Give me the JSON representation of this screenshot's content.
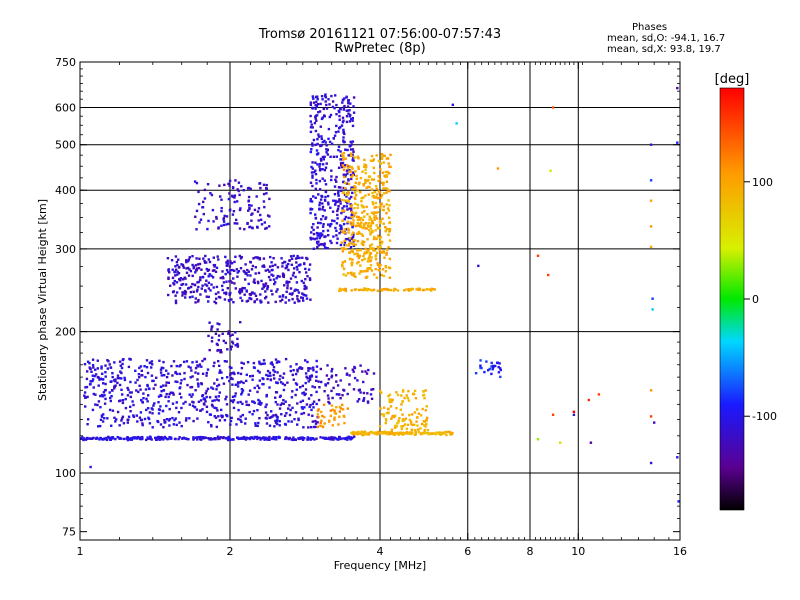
{
  "header": {
    "title_line1": "Tromsø 20161121 07:56:00-07:57:43",
    "title_line2": "RwPretec (8p)",
    "phases_title": "Phases",
    "phases_line1": "mean, sd,O: -94.1, 16.7",
    "phases_line2": "mean, sd,X:  93.8, 19.7"
  },
  "chart_data": {
    "type": "scatter",
    "title": "Tromsø 20161121 07:56:00-07:57:43",
    "subtitle": "RwPretec (8p)",
    "xlabel": "Frequency [MHz]",
    "ylabel": "Stationary phase Virtual Height [km]",
    "xscale": "log",
    "yscale": "log",
    "xlim": [
      1,
      16
    ],
    "ylim": [
      72,
      750
    ],
    "x_ticks": [
      1,
      2,
      4,
      6,
      8,
      10,
      16
    ],
    "y_ticks": [
      75,
      100,
      200,
      300,
      400,
      500,
      600,
      750
    ],
    "x_gridlines": [
      2,
      4,
      6,
      8,
      10
    ],
    "y_gridlines": [
      100,
      200,
      300,
      400,
      500,
      600
    ],
    "grid": true,
    "colorbar": {
      "label": "[deg]",
      "range": [
        -180,
        180
      ],
      "ticks": [
        -100,
        0,
        100
      ],
      "colormap": "rainbow (black-purple-blue-cyan-green-yellow-red)"
    },
    "series": [
      {
        "name": "O",
        "mean_phase": -94.1,
        "sd_phase": 16.7,
        "color": "#1a2ee8"
      },
      {
        "name": "X",
        "mean_phase": 93.8,
        "sd_phase": 19.7,
        "color": "#f2e41a"
      }
    ],
    "clusters": [
      {
        "series": "O",
        "shape": "trace",
        "x": [
          1.0,
          3.6
        ],
        "y": [
          118,
          119
        ],
        "count": 320,
        "phase": -105
      },
      {
        "series": "O",
        "shape": "box",
        "x": [
          1.02,
          3.0
        ],
        "y": [
          125,
          175
        ],
        "count": 700,
        "phase": -110
      },
      {
        "series": "O",
        "shape": "box",
        "x": [
          1.5,
          2.9
        ],
        "y": [
          230,
          290
        ],
        "count": 420,
        "phase": -115
      },
      {
        "series": "O",
        "shape": "box",
        "x": [
          1.7,
          2.4
        ],
        "y": [
          330,
          420
        ],
        "count": 120,
        "phase": -115
      },
      {
        "series": "O",
        "shape": "box",
        "x": [
          2.9,
          3.55
        ],
        "y": [
          300,
          640
        ],
        "count": 420,
        "phase": -110
      },
      {
        "series": "O",
        "shape": "box",
        "x": [
          3.0,
          3.9
        ],
        "y": [
          140,
          170
        ],
        "count": 70,
        "phase": -120
      },
      {
        "series": "O",
        "shape": "box",
        "x": [
          1.8,
          2.1
        ],
        "y": [
          180,
          210
        ],
        "count": 40,
        "phase": -115
      },
      {
        "series": "X",
        "shape": "box",
        "x": [
          3.35,
          4.2
        ],
        "y": [
          260,
          480
        ],
        "count": 450,
        "phase": 95
      },
      {
        "series": "X",
        "shape": "trace",
        "x": [
          3.5,
          5.6
        ],
        "y": [
          121,
          122
        ],
        "count": 150,
        "phase": 90
      },
      {
        "series": "X",
        "shape": "box",
        "x": [
          4.0,
          5.0
        ],
        "y": [
          123,
          150
        ],
        "count": 110,
        "phase": 90
      },
      {
        "series": "X",
        "shape": "trace",
        "x": [
          3.3,
          5.2
        ],
        "y": [
          245,
          246
        ],
        "count": 60,
        "phase": 95
      },
      {
        "series": "X",
        "shape": "box",
        "x": [
          3.0,
          3.45
        ],
        "y": [
          125,
          140
        ],
        "count": 40,
        "phase": 110
      },
      {
        "series": "O",
        "shape": "box",
        "x": [
          6.2,
          7.0
        ],
        "y": [
          160,
          175
        ],
        "count": 25,
        "phase": -90
      }
    ],
    "isolated_points": [
      {
        "x": 8.9,
        "y": 600,
        "phase": 140
      },
      {
        "x": 6.9,
        "y": 445,
        "phase": 110
      },
      {
        "x": 8.8,
        "y": 440,
        "phase": 40
      },
      {
        "x": 8.3,
        "y": 290,
        "phase": 150
      },
      {
        "x": 6.3,
        "y": 276,
        "phase": -110
      },
      {
        "x": 8.7,
        "y": 264,
        "phase": 150
      },
      {
        "x": 5.6,
        "y": 608,
        "phase": -100
      },
      {
        "x": 5.7,
        "y": 555,
        "phase": -40
      },
      {
        "x": 14.0,
        "y": 500,
        "phase": -110
      },
      {
        "x": 14.0,
        "y": 420,
        "phase": -80
      },
      {
        "x": 14.0,
        "y": 380,
        "phase": 100
      },
      {
        "x": 14.0,
        "y": 335,
        "phase": 110
      },
      {
        "x": 14.0,
        "y": 303,
        "phase": 100
      },
      {
        "x": 14.1,
        "y": 235,
        "phase": -80
      },
      {
        "x": 14.1,
        "y": 223,
        "phase": -40
      },
      {
        "x": 15.8,
        "y": 660,
        "phase": -140
      },
      {
        "x": 15.8,
        "y": 505,
        "phase": -90
      },
      {
        "x": 11.0,
        "y": 147,
        "phase": 150
      },
      {
        "x": 10.5,
        "y": 143,
        "phase": 160
      },
      {
        "x": 9.8,
        "y": 135,
        "phase": 180
      },
      {
        "x": 9.8,
        "y": 133,
        "phase": -110
      },
      {
        "x": 8.9,
        "y": 133,
        "phase": 150
      },
      {
        "x": 14.0,
        "y": 150,
        "phase": 110
      },
      {
        "x": 14.0,
        "y": 132,
        "phase": 150
      },
      {
        "x": 14.2,
        "y": 128,
        "phase": -120
      },
      {
        "x": 8.3,
        "y": 118,
        "phase": 30
      },
      {
        "x": 9.2,
        "y": 116,
        "phase": 60
      },
      {
        "x": 10.6,
        "y": 116,
        "phase": -140
      },
      {
        "x": 14.0,
        "y": 105,
        "phase": -110
      },
      {
        "x": 15.8,
        "y": 108,
        "phase": -100
      },
      {
        "x": 15.9,
        "y": 87,
        "phase": -90
      },
      {
        "x": 1.05,
        "y": 103,
        "phase": -100
      }
    ]
  }
}
